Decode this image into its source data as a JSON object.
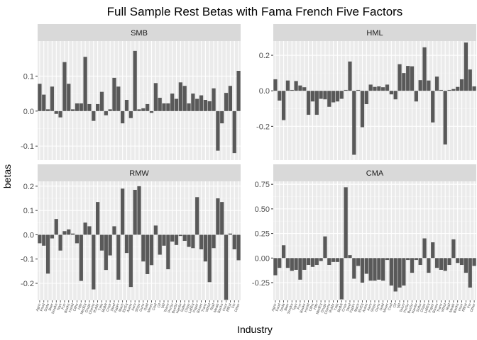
{
  "chart_data": {
    "type": "bar",
    "title": "Full Sample Rest Betas with Fama French Five Factors",
    "xlabel": "Industry",
    "ylabel": "betas",
    "legend": "none",
    "grid": true,
    "categories": [
      "Agric",
      "Food",
      "Soda",
      "Beer",
      "Smoke",
      "Toys",
      "Fun",
      "Books",
      "Hshld",
      "Clths",
      "Hlth",
      "MedEq",
      "Drugs",
      "Chems",
      "Rubbr",
      "Txtls",
      "BldMt",
      "Cnstr",
      "Steel",
      "FabPr",
      "Mach",
      "ElcEq",
      "Autos",
      "Aero",
      "Ships",
      "Guns",
      "Gold",
      "Mines",
      "Coal",
      "Oil",
      "Util",
      "Telcm",
      "PerSv",
      "BusSv",
      "Hardw",
      "Softw",
      "Chips",
      "LabEq",
      "Paper",
      "Boxes",
      "Trans",
      "Whlsl",
      "Rtail",
      "Meals",
      "Banks",
      "Insur",
      "RlEst",
      "Fin",
      "Other"
    ],
    "panels": [
      {
        "name": "SMB",
        "ylim": [
          -0.14,
          0.2
        ],
        "yticks": [
          -0.1,
          0.0,
          0.1
        ],
        "tick_labels": [
          "-0.1",
          "0.0",
          "0.1"
        ],
        "values": [
          0.078,
          0.047,
          0.005,
          0.07,
          -0.008,
          -0.018,
          0.14,
          0.078,
          0.005,
          0.022,
          0.022,
          0.155,
          0.02,
          -0.028,
          0.02,
          0.055,
          -0.012,
          0.005,
          0.095,
          0.07,
          -0.035,
          0.032,
          -0.02,
          0.172,
          0.005,
          0.008,
          0.02,
          -0.005,
          0.08,
          0.038,
          0.022,
          0.022,
          0.05,
          0.035,
          0.082,
          0.072,
          0.022,
          0.05,
          0.035,
          0.045,
          0.032,
          0.028,
          0.065,
          -0.113,
          -0.035,
          0.052,
          0.072,
          -0.12,
          0.115
        ]
      },
      {
        "name": "HML",
        "ylim": [
          -0.39,
          0.28
        ],
        "yticks": [
          -0.2,
          0.0,
          0.2
        ],
        "tick_labels": [
          "-0.2",
          "0.0",
          "0.2"
        ],
        "values": [
          0.065,
          -0.055,
          -0.165,
          0.058,
          0.005,
          0.055,
          0.03,
          0.02,
          -0.135,
          -0.06,
          -0.135,
          -0.045,
          -0.048,
          -0.09,
          -0.065,
          -0.06,
          -0.045,
          0.005,
          0.165,
          -0.36,
          0.005,
          -0.205,
          -0.075,
          0.035,
          0.022,
          0.025,
          0.02,
          0.035,
          -0.02,
          -0.048,
          0.15,
          0.1,
          0.14,
          0.138,
          -0.06,
          0.06,
          0.245,
          0.058,
          -0.178,
          0.08,
          0.005,
          -0.302,
          0.005,
          0.01,
          0.022,
          0.065,
          0.272,
          0.12,
          0.025
        ]
      },
      {
        "name": "RMW",
        "ylim": [
          -0.27,
          0.22
        ],
        "yticks": [
          -0.2,
          -0.1,
          0.0,
          0.1,
          0.2
        ],
        "tick_labels": [
          "-0.2",
          "-0.1",
          "0.0",
          "0.1",
          "0.2"
        ],
        "values": [
          -0.035,
          -0.045,
          -0.16,
          -0.015,
          0.065,
          -0.065,
          0.015,
          0.022,
          0.005,
          -0.035,
          -0.19,
          0.05,
          0.035,
          -0.225,
          0.135,
          -0.065,
          -0.145,
          -0.085,
          0.035,
          -0.185,
          0.19,
          -0.075,
          -0.215,
          0.185,
          0.2,
          -0.11,
          -0.162,
          -0.125,
          0.038,
          -0.082,
          -0.045,
          -0.142,
          -0.028,
          -0.042,
          -0.005,
          -0.025,
          -0.05,
          -0.055,
          0.155,
          -0.06,
          -0.11,
          -0.195,
          -0.055,
          0.15,
          0.135,
          -0.268,
          0.005,
          -0.06,
          -0.105
        ]
      },
      {
        "name": "CMA",
        "ylim": [
          -0.43,
          0.78
        ],
        "yticks": [
          -0.25,
          0.0,
          0.25,
          0.5,
          0.75
        ],
        "tick_labels": [
          "-0.25",
          "0.00",
          "0.25",
          "0.50",
          "0.75"
        ],
        "values": [
          -0.175,
          -0.1,
          0.13,
          -0.1,
          -0.13,
          -0.12,
          -0.22,
          -0.12,
          -0.07,
          -0.09,
          -0.07,
          -0.03,
          0.22,
          -0.07,
          -0.04,
          -0.04,
          -0.42,
          0.72,
          0.03,
          -0.21,
          -0.08,
          -0.25,
          -0.16,
          -0.23,
          -0.23,
          -0.22,
          -0.23,
          -0.02,
          -0.28,
          -0.34,
          -0.3,
          -0.28,
          -0.02,
          -0.15,
          -0.02,
          -0.07,
          0.2,
          -0.15,
          0.16,
          -0.1,
          -0.12,
          -0.13,
          -0.07,
          0.19,
          -0.05,
          -0.07,
          -0.15,
          -0.3,
          -0.08
        ]
      }
    ]
  }
}
